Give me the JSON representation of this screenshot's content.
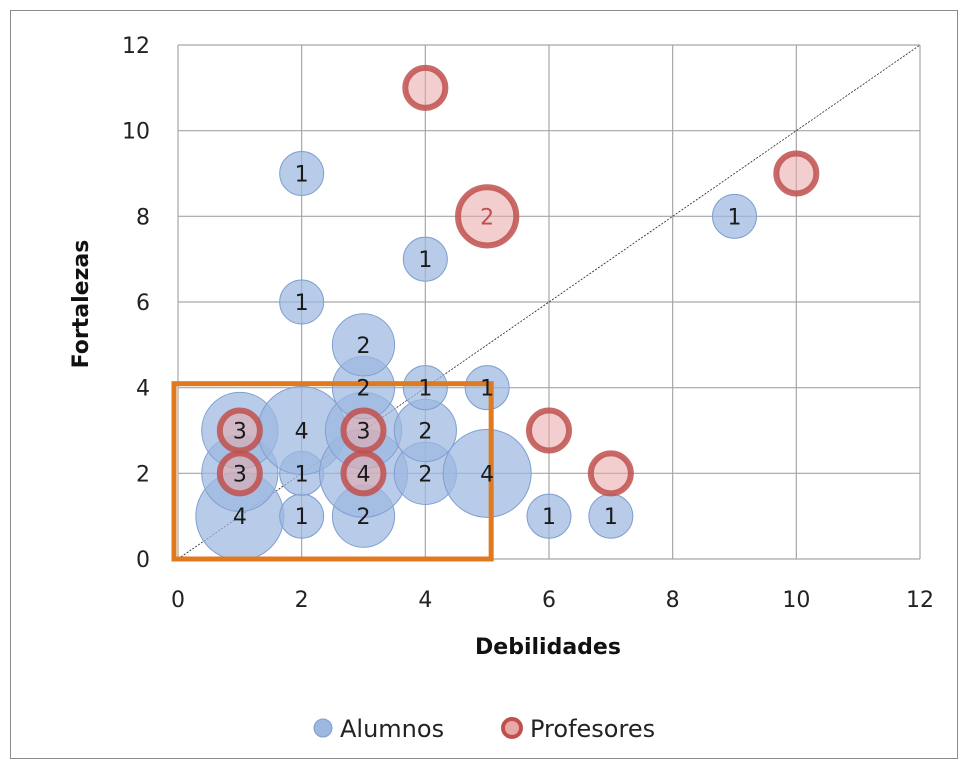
{
  "chart_data": {
    "type": "bubble",
    "xlabel": "Debilidades",
    "ylabel": "Fortalezas",
    "xlim": [
      0,
      12
    ],
    "ylim": [
      0,
      12
    ],
    "x_ticks": [
      0,
      2,
      4,
      6,
      8,
      10,
      12
    ],
    "y_ticks": [
      0,
      2,
      4,
      6,
      8,
      10,
      12
    ],
    "grid": true,
    "diagonal_reference_line": true,
    "legend_position": "bottom",
    "highlight_box": {
      "x": [
        0,
        5
      ],
      "y": [
        0,
        4
      ],
      "color": "#e07a1f"
    },
    "series": [
      {
        "name": "Alumnos",
        "color": "#9db8e0",
        "points": [
          {
            "x": 1,
            "y": 1,
            "size": 4
          },
          {
            "x": 1,
            "y": 2,
            "size": 3
          },
          {
            "x": 1,
            "y": 3,
            "size": 3
          },
          {
            "x": 2,
            "y": 1,
            "size": 1
          },
          {
            "x": 2,
            "y": 2,
            "size": 1
          },
          {
            "x": 2,
            "y": 3,
            "size": 4
          },
          {
            "x": 2,
            "y": 6,
            "size": 1
          },
          {
            "x": 2,
            "y": 9,
            "size": 1
          },
          {
            "x": 3,
            "y": 1,
            "size": 2
          },
          {
            "x": 3,
            "y": 2,
            "size": 4
          },
          {
            "x": 3,
            "y": 3,
            "size": 3
          },
          {
            "x": 3,
            "y": 4,
            "size": 2
          },
          {
            "x": 3,
            "y": 5,
            "size": 2
          },
          {
            "x": 4,
            "y": 2,
            "size": 2
          },
          {
            "x": 4,
            "y": 3,
            "size": 2
          },
          {
            "x": 4,
            "y": 4,
            "size": 1
          },
          {
            "x": 4,
            "y": 7,
            "size": 1
          },
          {
            "x": 5,
            "y": 2,
            "size": 4
          },
          {
            "x": 5,
            "y": 4,
            "size": 1
          },
          {
            "x": 6,
            "y": 1,
            "size": 1
          },
          {
            "x": 7,
            "y": 1,
            "size": 1
          },
          {
            "x": 9,
            "y": 8,
            "size": 1
          }
        ]
      },
      {
        "name": "Profesores",
        "color": "#c0504d",
        "points": [
          {
            "x": 1,
            "y": 2,
            "size": 1
          },
          {
            "x": 1,
            "y": 3,
            "size": 1
          },
          {
            "x": 3,
            "y": 2,
            "size": 1
          },
          {
            "x": 3,
            "y": 3,
            "size": 1
          },
          {
            "x": 4,
            "y": 11,
            "size": 1
          },
          {
            "x": 5,
            "y": 8,
            "size": 2
          },
          {
            "x": 6,
            "y": 3,
            "size": 1
          },
          {
            "x": 7,
            "y": 2,
            "size": 1
          },
          {
            "x": 10,
            "y": 9,
            "size": 1
          }
        ]
      }
    ]
  },
  "legend": {
    "alumnos_label": "Alumnos",
    "profesores_label": "Profesores"
  }
}
